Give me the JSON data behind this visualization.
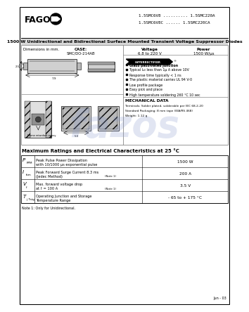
{
  "title_part": "1.5SMC6V8 .......... 1.5SMC220A",
  "title_part2": "1.5SMC6V8C ...... 1.5SMC220CA",
  "main_title": "1500 W Unidirectional and Bidirectional Surface Mounted Transient Voltage Suppressor Diodes",
  "case_label": "CASE:",
  "case_value": "SMC/DO-214AB",
  "voltage_label": "Voltage",
  "voltage_value": "6.8 to 220 V",
  "power_label": "Power",
  "power_value": "1500 W/μs",
  "brand": "FAGOR",
  "bg_color": "#ffffff",
  "table_title": "Maximum Ratings and Electrical Characteristics at 25 °C",
  "rows": [
    {
      "sym1": "P",
      "sym2": "PPM",
      "description1": "Peak Pulse Power Dissipation",
      "description2": "with 10/1000 μs exponential pulse",
      "note": "",
      "value": "1500 W"
    },
    {
      "sym1": "I",
      "sym2": "fsm",
      "description1": "Peak Forward Surge Current 8.3 ms",
      "description2": "(Jedec Method)",
      "note": "(Note 1)",
      "value": "200 A"
    },
    {
      "sym1": "V",
      "sym2": "f",
      "description1": "Max. forward voltage drop",
      "description2": "at Iⁱ = 100 A",
      "note": "(Note 1)",
      "value": "3.5 V"
    },
    {
      "sym1": "T",
      "sym2": "j  Tstg",
      "description1": "Operating Junction and Storage",
      "description2": "Temperature Range",
      "note": "",
      "value": "- 65 to + 175 °C"
    }
  ],
  "note1": "Note 1: Only for Unidirectional.",
  "features": [
    "Glass passivated junction",
    "Typical Iₐ₀ less than 1μ A above 10V",
    "Response time typically < 1 ns",
    "The plastic material carries UL 94 V-0",
    "Low profile package",
    "Easy pick and place",
    "High temperature soldering 260 °C 10 sec"
  ],
  "mech_title": "MECHANICAL DATA",
  "mech_data": [
    "Terminals: Solder plated, solderable per IEC 68-2-20",
    "Standard Packaging: 8 mm tape (EIA/RS 468)",
    "Weight: 1.12 g"
  ],
  "date": "Jun - 03",
  "dim_label": "Dimensions in mm."
}
